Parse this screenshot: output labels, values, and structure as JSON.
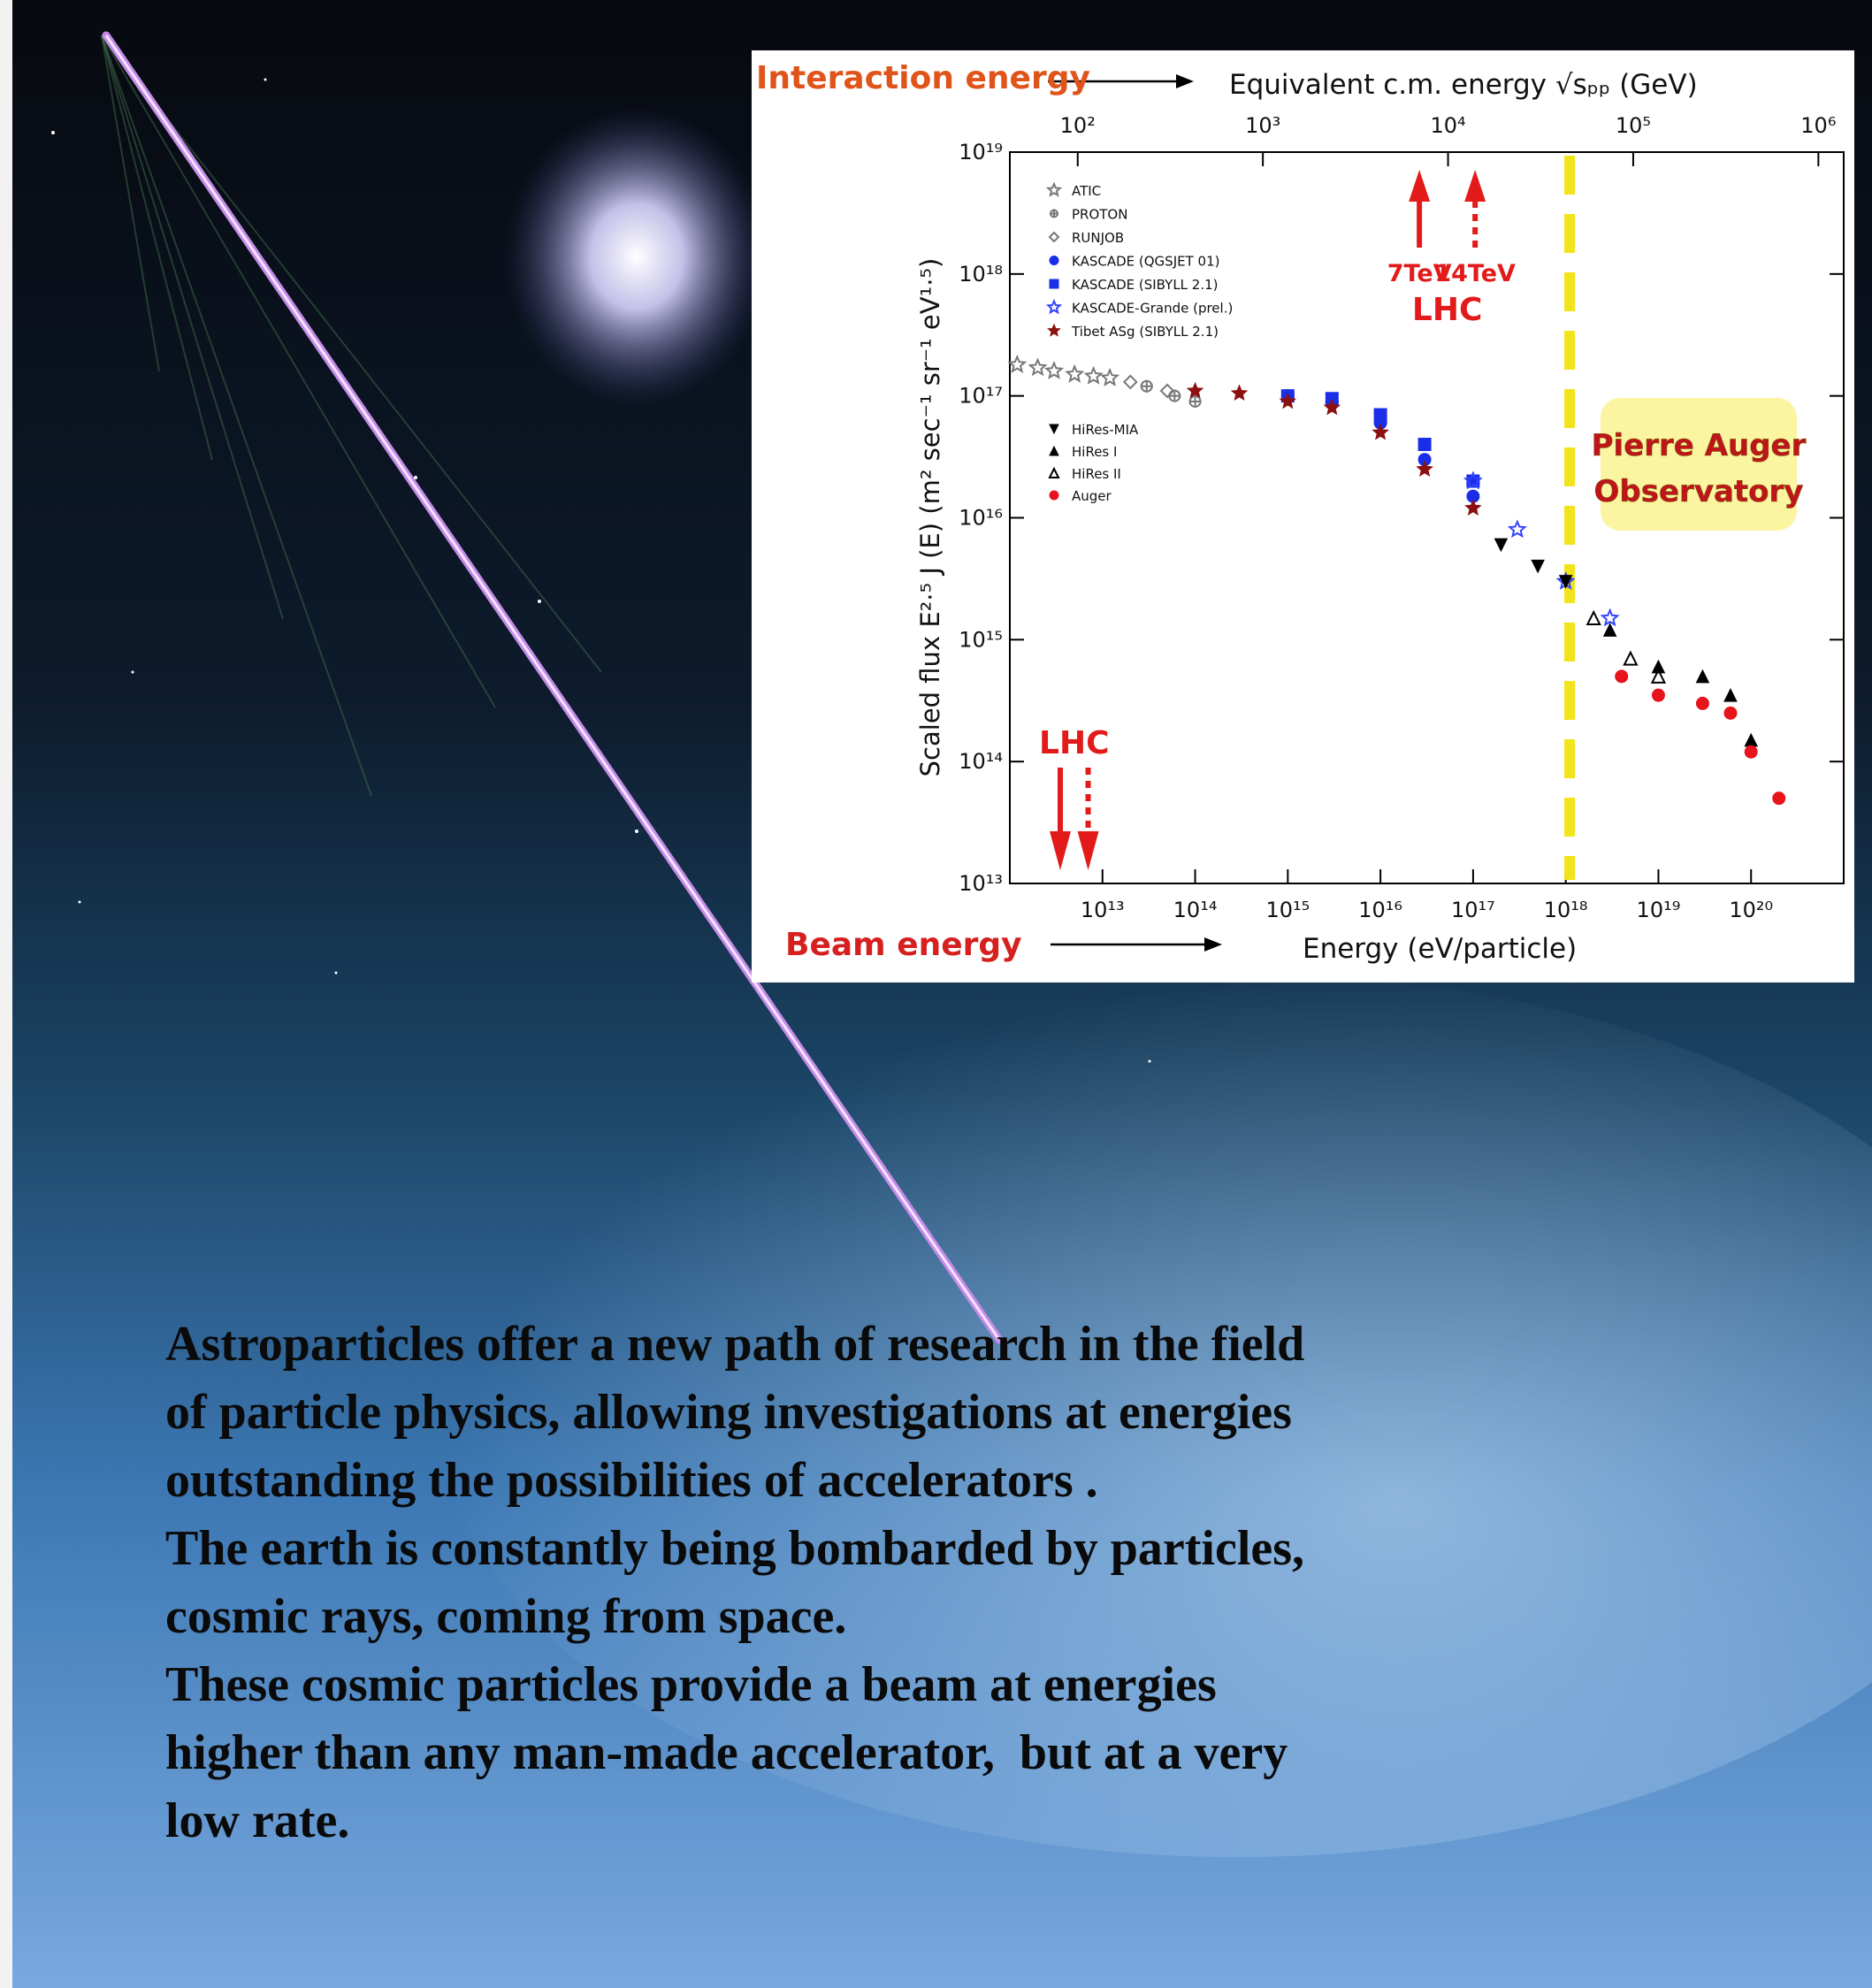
{
  "chart_data": {
    "type": "scatter",
    "x_label": "Energy   (eV/particle)",
    "x_axis_title": "Beam energy",
    "x2_label": "Equivalent c.m. energy √sₚₚ   (GeV)",
    "x2_axis_title": "Interaction energy",
    "y_label": "Scaled flux   E²·⁵ J (E)   (m² sec⁻¹ sr⁻¹ eV¹·⁵)",
    "log_x": true,
    "log_y": true,
    "xlim": [
      1000000000000.0,
      1e+21
    ],
    "x2lim": [
      43,
      1370000
    ],
    "ylim": [
      10000000000000.0,
      1e+19
    ],
    "xticks": [
      {
        "value": 10000000000000.0,
        "label": "10¹³"
      },
      {
        "value": 100000000000000.0,
        "label": "10¹⁴"
      },
      {
        "value": 1000000000000000.0,
        "label": "10¹⁵"
      },
      {
        "value": 1e+16,
        "label": "10¹⁶"
      },
      {
        "value": 1e+17,
        "label": "10¹⁷"
      },
      {
        "value": 1e+18,
        "label": "10¹⁸"
      },
      {
        "value": 1e+19,
        "label": "10¹⁹"
      },
      {
        "value": 1e+20,
        "label": "10²⁰"
      }
    ],
    "x2ticks": [
      {
        "value": 100,
        "label": "10²"
      },
      {
        "value": 1000,
        "label": "10³"
      },
      {
        "value": 10000,
        "label": "10⁴"
      },
      {
        "value": 100000,
        "label": "10⁵"
      },
      {
        "value": 1000000,
        "label": "10⁶"
      }
    ],
    "yticks": [
      {
        "value": 10000000000000.0,
        "label": "10¹³"
      },
      {
        "value": 100000000000000.0,
        "label": "10¹⁴"
      },
      {
        "value": 1000000000000000.0,
        "label": "10¹⁵"
      },
      {
        "value": 1e+16,
        "label": "10¹⁶"
      },
      {
        "value": 1e+17,
        "label": "10¹⁷"
      },
      {
        "value": 1e+18,
        "label": "10¹⁸"
      },
      {
        "value": 1e+19,
        "label": "10¹⁹"
      }
    ],
    "series": [
      {
        "name": "ATIC",
        "color": "#777777",
        "marker": "star-open",
        "x": [
          1200000000000.0,
          2000000000000.0,
          3000000000000.0,
          5000000000000.0,
          8000000000000.0,
          12000000000000.0
        ],
        "values": [
          1.8e+17,
          1.7e+17,
          1.6e+17,
          1.5e+17,
          1.45e+17,
          1.4e+17
        ]
      },
      {
        "name": "PROTON",
        "color": "#777777",
        "marker": "circle-cross-open",
        "x": [
          30000000000000.0,
          60000000000000.0,
          100000000000000.0
        ],
        "values": [
          1.2e+17,
          1e+17,
          9e+16
        ]
      },
      {
        "name": "RUNJOB",
        "color": "#777777",
        "marker": "diamond-open",
        "x": [
          20000000000000.0,
          50000000000000.0
        ],
        "values": [
          1.3e+17,
          1.1e+17
        ]
      },
      {
        "name": "KASCADE (QGSJET 01)",
        "color": "#1a2ee8",
        "marker": "circle",
        "x": [
          1000000000000000.0,
          3000000000000000.0,
          1e+16,
          3e+16,
          1e+17
        ],
        "values": [
          1e+17,
          9e+16,
          6e+16,
          3e+16,
          1.5e+16
        ]
      },
      {
        "name": "KASCADE (SIBYLL 2.1)",
        "color": "#1a2ee8",
        "marker": "square",
        "x": [
          1000000000000000.0,
          3000000000000000.0,
          1e+16,
          3e+16,
          1e+17
        ],
        "values": [
          1e+17,
          9.5e+16,
          7e+16,
          4e+16,
          2e+16
        ]
      },
      {
        "name": "KASCADE-Grande (prel.)",
        "color": "#3344ff",
        "marker": "star-open",
        "x": [
          1e+17,
          3e+17,
          1e+18,
          3e+18
        ],
        "values": [
          2e+16,
          8000000000000000.0,
          3000000000000000.0,
          1500000000000000.0
        ]
      },
      {
        "name": "Tibet ASg (SIBYLL 2.1)",
        "color": "#8b1010",
        "marker": "star",
        "x": [
          100000000000000.0,
          300000000000000.0,
          1000000000000000.0,
          3000000000000000.0,
          1e+16,
          3e+16,
          1e+17
        ],
        "values": [
          1.1e+17,
          1.05e+17,
          9e+16,
          8e+16,
          5e+16,
          2.5e+16,
          1.2e+16
        ]
      },
      {
        "name": "HiRes-MIA",
        "color": "#000000",
        "marker": "triangle-down",
        "x": [
          2e+17,
          5e+17,
          1e+18
        ],
        "values": [
          6000000000000000.0,
          4000000000000000.0,
          3000000000000000.0
        ]
      },
      {
        "name": "HiRes I",
        "color": "#000000",
        "marker": "triangle",
        "x": [
          3e+18,
          1e+19,
          3e+19,
          6e+19,
          1e+20
        ],
        "values": [
          1200000000000000.0,
          600000000000000.0,
          500000000000000.0,
          350000000000000.0,
          150000000000000.0
        ]
      },
      {
        "name": "HiRes II",
        "color": "#000000",
        "marker": "triangle-open",
        "x": [
          2e+18,
          5e+18,
          1e+19
        ],
        "values": [
          1500000000000000.0,
          700000000000000.0,
          500000000000000.0
        ]
      },
      {
        "name": "Auger",
        "color": "#e8141c",
        "marker": "circle",
        "x": [
          4e+18,
          1e+19,
          3e+19,
          6e+19,
          1e+20,
          2e+20
        ],
        "values": [
          500000000000000.0,
          350000000000000.0,
          300000000000000.0,
          250000000000000.0,
          120000000000000.0,
          50000000000000.0
        ]
      }
    ],
    "top_arrows": [
      {
        "label": "7TeV",
        "x2": 7000,
        "style": "solid"
      },
      {
        "label": "14TeV",
        "x2": 14000,
        "style": "dotted"
      }
    ],
    "top_arrows_label": "LHC",
    "bottom_arrows": [
      {
        "x": 3500000000000.0,
        "style": "solid"
      },
      {
        "x": 7000000000000.0,
        "style": "dotted"
      }
    ],
    "bottom_arrows_label": "LHC",
    "vline": {
      "x": 1.1e+18,
      "color": "#f2e41a"
    },
    "box_label": [
      "Pierre Auger",
      "Observatory"
    ]
  },
  "text": {
    "lines": [
      "Astroparticles offer a new path of research in the field",
      "of particle physics, allowing investigations at energies",
      "outstanding the possibilities of accelerators .",
      "The earth is constantly being bombarded by particles,",
      "cosmic rays, coming from space.",
      "These cosmic particles provide a beam at energies",
      "higher than any man-made accelerator,  but at a very",
      "low rate."
    ]
  }
}
